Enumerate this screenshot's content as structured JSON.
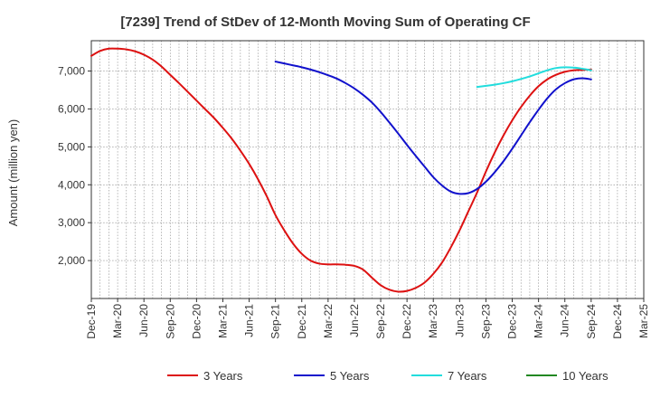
{
  "chart_data": {
    "type": "line",
    "title": "[7239]  Trend of StDev of 12-Month Moving Sum of Operating CF",
    "xlabel": "",
    "ylabel": "Amount (million yen)",
    "ylim": [
      1000,
      7800
    ],
    "yticks": [
      2000,
      3000,
      4000,
      5000,
      6000,
      7000
    ],
    "ytick_labels": [
      "2,000",
      "3,000",
      "4,000",
      "5,000",
      "6,000",
      "7,000"
    ],
    "x_start": "2019-12",
    "x_end": "2025-03",
    "xtick_labels": [
      "Dec-19",
      "Mar-20",
      "Jun-20",
      "Sep-20",
      "Dec-20",
      "Mar-21",
      "Jun-21",
      "Sep-21",
      "Dec-21",
      "Mar-22",
      "Jun-22",
      "Sep-22",
      "Dec-22",
      "Mar-23",
      "Jun-23",
      "Sep-23",
      "Dec-23",
      "Mar-24",
      "Jun-24",
      "Sep-24",
      "Dec-24",
      "Mar-25"
    ],
    "grid": true,
    "legend_position": "bottom",
    "series": [
      {
        "name": "3 Years",
        "color": "#dd1111",
        "x": [
          "2019-12",
          "2020-01",
          "2020-02",
          "2020-03",
          "2020-04",
          "2020-05",
          "2020-06",
          "2020-07",
          "2020-08",
          "2020-09",
          "2020-10",
          "2020-11",
          "2020-12",
          "2021-01",
          "2021-02",
          "2021-03",
          "2021-04",
          "2021-05",
          "2021-06",
          "2021-07",
          "2021-08",
          "2021-09",
          "2021-10",
          "2021-11",
          "2021-12",
          "2022-01",
          "2022-02",
          "2022-03",
          "2022-04",
          "2022-05",
          "2022-06",
          "2022-07",
          "2022-08",
          "2022-09",
          "2022-10",
          "2022-11",
          "2022-12",
          "2023-01",
          "2023-02",
          "2023-03",
          "2023-04",
          "2023-05",
          "2023-06",
          "2023-07",
          "2023-08",
          "2023-09",
          "2023-10",
          "2023-11",
          "2023-12",
          "2024-01",
          "2024-02",
          "2024-03",
          "2024-04",
          "2024-05",
          "2024-06",
          "2024-07",
          "2024-08",
          "2024-09"
        ],
        "values": [
          7400,
          7530,
          7590,
          7590,
          7570,
          7520,
          7430,
          7300,
          7120,
          6900,
          6680,
          6450,
          6220,
          5990,
          5760,
          5500,
          5220,
          4900,
          4550,
          4150,
          3700,
          3200,
          2800,
          2450,
          2180,
          2000,
          1920,
          1900,
          1900,
          1890,
          1860,
          1760,
          1550,
          1350,
          1230,
          1180,
          1200,
          1280,
          1420,
          1650,
          1950,
          2350,
          2800,
          3300,
          3800,
          4350,
          4850,
          5300,
          5700,
          6050,
          6350,
          6600,
          6780,
          6900,
          6980,
          7020,
          7030,
          7040
        ]
      },
      {
        "name": "5 Years",
        "color": "#1111cc",
        "x": [
          "2021-09",
          "2021-10",
          "2021-11",
          "2021-12",
          "2022-01",
          "2022-02",
          "2022-03",
          "2022-04",
          "2022-05",
          "2022-06",
          "2022-07",
          "2022-08",
          "2022-09",
          "2022-10",
          "2022-11",
          "2022-12",
          "2023-01",
          "2023-02",
          "2023-03",
          "2023-04",
          "2023-05",
          "2023-06",
          "2023-07",
          "2023-08",
          "2023-09",
          "2023-10",
          "2023-11",
          "2023-12",
          "2024-01",
          "2024-02",
          "2024-03",
          "2024-04",
          "2024-05",
          "2024-06",
          "2024-07",
          "2024-08",
          "2024-09"
        ],
        "values": [
          7250,
          7200,
          7150,
          7100,
          7040,
          6970,
          6890,
          6800,
          6680,
          6540,
          6370,
          6170,
          5920,
          5640,
          5350,
          5050,
          4760,
          4480,
          4200,
          3980,
          3820,
          3760,
          3780,
          3890,
          4080,
          4330,
          4620,
          4950,
          5300,
          5650,
          5980,
          6280,
          6520,
          6680,
          6780,
          6810,
          6780
        ]
      },
      {
        "name": "7 Years",
        "color": "#22dddd",
        "x": [
          "2023-08",
          "2023-09",
          "2023-10",
          "2023-11",
          "2023-12",
          "2024-01",
          "2024-02",
          "2024-03",
          "2024-04",
          "2024-05",
          "2024-06",
          "2024-07",
          "2024-08",
          "2024-09"
        ],
        "values": [
          6580,
          6610,
          6640,
          6680,
          6730,
          6790,
          6860,
          6940,
          7020,
          7080,
          7100,
          7090,
          7060,
          7020
        ]
      },
      {
        "name": "10 Years",
        "color": "#228822",
        "x": [],
        "values": []
      }
    ]
  }
}
